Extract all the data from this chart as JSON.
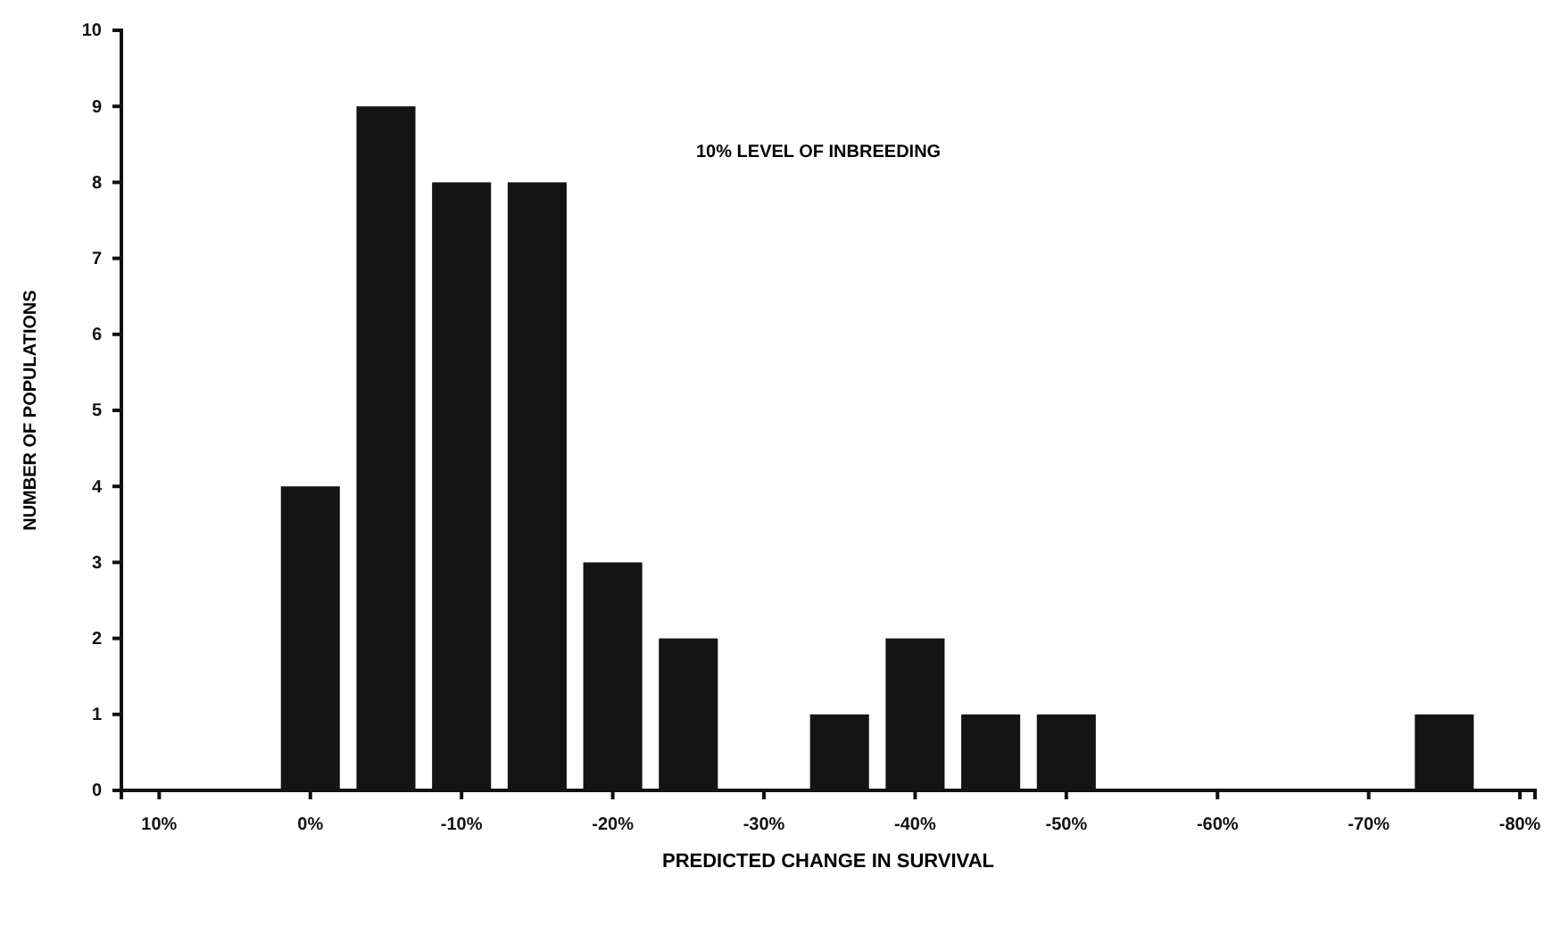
{
  "chart_data": {
    "type": "bar",
    "xlabel": "PREDICTED CHANGE IN SURVIVAL",
    "ylabel": "NUMBER OF POPULATIONS",
    "annotations": [
      "10% LEVEL OF INBREEDING"
    ],
    "x": [
      0,
      -5,
      -10,
      -15,
      -20,
      -25,
      -35,
      -40,
      -45,
      -50,
      -75
    ],
    "values": [
      4,
      9,
      8,
      8,
      3,
      2,
      1,
      2,
      1,
      1,
      1
    ],
    "color": "#141414",
    "xlim": [
      12.5,
      -81
    ],
    "xticks": [
      {
        "value": 10,
        "label": "10%"
      },
      {
        "value": 0,
        "label": "0%"
      },
      {
        "value": -10,
        "label": "-10%"
      },
      {
        "value": -20,
        "label": "-20%"
      },
      {
        "value": -30,
        "label": "-30%"
      },
      {
        "value": -40,
        "label": "-40%"
      },
      {
        "value": -50,
        "label": "-50%"
      },
      {
        "value": -60,
        "label": "-60%"
      },
      {
        "value": -70,
        "label": "-70%"
      },
      {
        "value": -80,
        "label": "-80%"
      }
    ],
    "ylim": [
      0,
      10
    ],
    "yticks": [
      0,
      1,
      2,
      3,
      4,
      5,
      6,
      7,
      8,
      9,
      10
    ],
    "grid": false
  }
}
